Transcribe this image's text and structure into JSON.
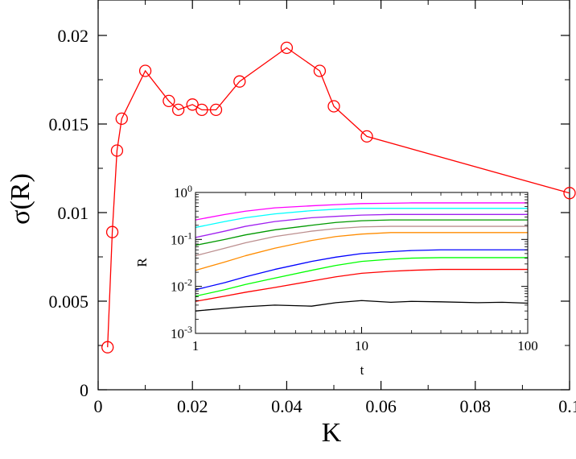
{
  "chart_data": [
    {
      "type": "scatter",
      "xlabel": "K",
      "ylabel": "σ(R)",
      "xlim": [
        0,
        0.1
      ],
      "ylim": [
        0,
        0.022
      ],
      "x_ticks": [
        0,
        0.02,
        0.04,
        0.06,
        0.08,
        0.1
      ],
      "x_tick_labels": [
        "0",
        "0.02",
        "0.04",
        "0.06",
        "0.08",
        "0.1"
      ],
      "y_ticks": [
        0,
        0.005,
        0.01,
        0.015,
        0.02
      ],
      "y_tick_labels": [
        "0",
        "0.005",
        "0.01",
        "0.015",
        "0.02"
      ],
      "grid": false,
      "series": [
        {
          "color": "#ff0000",
          "marker": "open-circle",
          "line": true,
          "x": [
            0.002,
            0.003,
            0.004,
            0.005,
            0.01,
            0.015,
            0.017,
            0.02,
            0.022,
            0.025,
            0.03,
            0.04,
            0.047,
            0.05,
            0.057,
            0.1
          ],
          "y": [
            0.0024,
            0.0089,
            0.0135,
            0.0153,
            0.018,
            0.0163,
            0.0158,
            0.0161,
            0.0158,
            0.0158,
            0.0174,
            0.0193,
            0.018,
            0.016,
            0.0143,
            0.0111
          ]
        }
      ]
    },
    {
      "type": "line",
      "xlabel": "t",
      "ylabel": "R",
      "xscale": "log",
      "yscale": "log",
      "xlim": [
        1,
        100
      ],
      "ylim": [
        0.001,
        1
      ],
      "x_ticks": [
        1,
        10,
        100
      ],
      "x_tick_labels": [
        "1",
        "10",
        "100"
      ],
      "y_ticks": [
        0.001,
        0.01,
        0.1,
        1
      ],
      "y_tick_labels": [
        {
          "base": "10",
          "exp": "-3"
        },
        {
          "base": "10",
          "exp": "-2"
        },
        {
          "base": "10",
          "exp": "-1"
        },
        {
          "base": "10",
          "exp": "0"
        }
      ],
      "grid": false,
      "t": [
        1,
        1.5,
        2,
        3,
        5,
        7,
        10,
        15,
        20,
        30,
        50,
        70,
        100
      ],
      "series": [
        {
          "color": "#ff00ff",
          "values": [
            0.26,
            0.34,
            0.4,
            0.47,
            0.52,
            0.55,
            0.58,
            0.59,
            0.6,
            0.6,
            0.6,
            0.6,
            0.6
          ]
        },
        {
          "color": "#00ffff",
          "values": [
            0.18,
            0.24,
            0.29,
            0.35,
            0.41,
            0.44,
            0.46,
            0.46,
            0.46,
            0.46,
            0.46,
            0.46,
            0.46
          ]
        },
        {
          "color": "#a020f0",
          "values": [
            0.11,
            0.15,
            0.19,
            0.24,
            0.29,
            0.31,
            0.33,
            0.34,
            0.34,
            0.34,
            0.34,
            0.34,
            0.34
          ]
        },
        {
          "color": "#009900",
          "values": [
            0.075,
            0.1,
            0.125,
            0.16,
            0.2,
            0.23,
            0.25,
            0.26,
            0.26,
            0.26,
            0.26,
            0.26,
            0.26
          ]
        },
        {
          "color": "#bc8f8f",
          "values": [
            0.045,
            0.065,
            0.085,
            0.115,
            0.15,
            0.17,
            0.185,
            0.19,
            0.19,
            0.19,
            0.19,
            0.19,
            0.19
          ]
        },
        {
          "color": "#ff8c00",
          "values": [
            0.022,
            0.033,
            0.045,
            0.065,
            0.095,
            0.115,
            0.13,
            0.14,
            0.14,
            0.14,
            0.14,
            0.14,
            0.14
          ]
        },
        {
          "color": "#0000ff",
          "values": [
            0.0085,
            0.012,
            0.016,
            0.023,
            0.034,
            0.042,
            0.05,
            0.055,
            0.058,
            0.06,
            0.06,
            0.06,
            0.06
          ]
        },
        {
          "color": "#00ff00",
          "values": [
            0.0062,
            0.0085,
            0.011,
            0.015,
            0.022,
            0.028,
            0.034,
            0.038,
            0.04,
            0.041,
            0.041,
            0.041,
            0.041
          ]
        },
        {
          "color": "#ff0000",
          "values": [
            0.0048,
            0.0062,
            0.0075,
            0.0095,
            0.013,
            0.016,
            0.019,
            0.021,
            0.022,
            0.023,
            0.023,
            0.023,
            0.023
          ]
        },
        {
          "color": "#000000",
          "values": [
            0.003,
            0.0034,
            0.0037,
            0.004,
            0.0038,
            0.0045,
            0.005,
            0.0046,
            0.0048,
            0.0047,
            0.0045,
            0.0046,
            0.0044
          ]
        }
      ]
    }
  ]
}
